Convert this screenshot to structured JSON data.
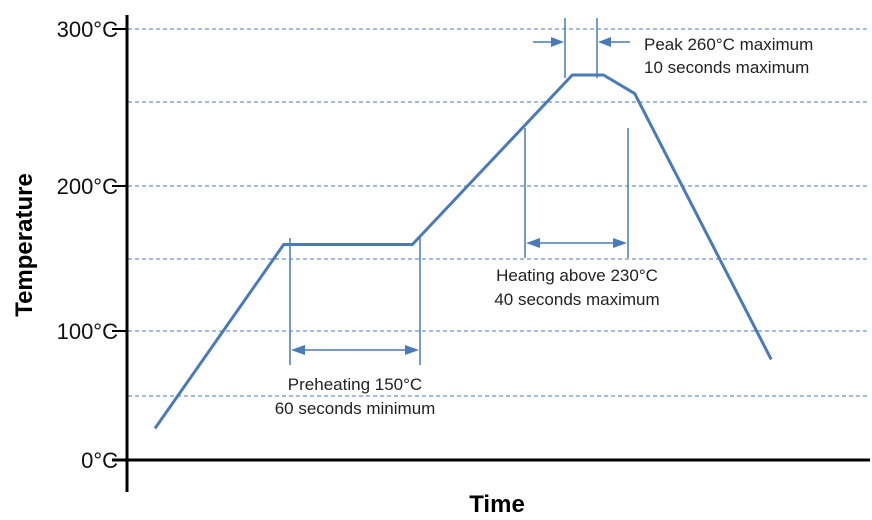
{
  "chart_data": {
    "type": "line",
    "title": "",
    "xlabel": "Time",
    "ylabel": "Temperature",
    "y_ticks": [
      "0°C",
      "100°C",
      "200°C",
      "300°C"
    ],
    "ylim": [
      0,
      300
    ],
    "grid": true,
    "gridlines": [
      50,
      150,
      255,
      300
    ],
    "colors": {
      "profile": "#4a7ab8",
      "grid": "#4a7ab8",
      "axis": "#000000"
    },
    "series": [
      {
        "x": [
          0,
          33,
          66,
          107,
          115,
          123,
          158
        ],
        "y": [
          22,
          150,
          150,
          268,
          268,
          255,
          70
        ]
      }
    ],
    "annotations": {
      "peak": {
        "line1": "Peak 260°C maximum",
        "line2": "10 seconds maximum"
      },
      "heating": {
        "line1": "Heating above 230°C",
        "line2": "40 seconds maximum"
      },
      "preheat": {
        "line1": "Preheating 150°C",
        "line2": "60 seconds minimum"
      }
    }
  }
}
